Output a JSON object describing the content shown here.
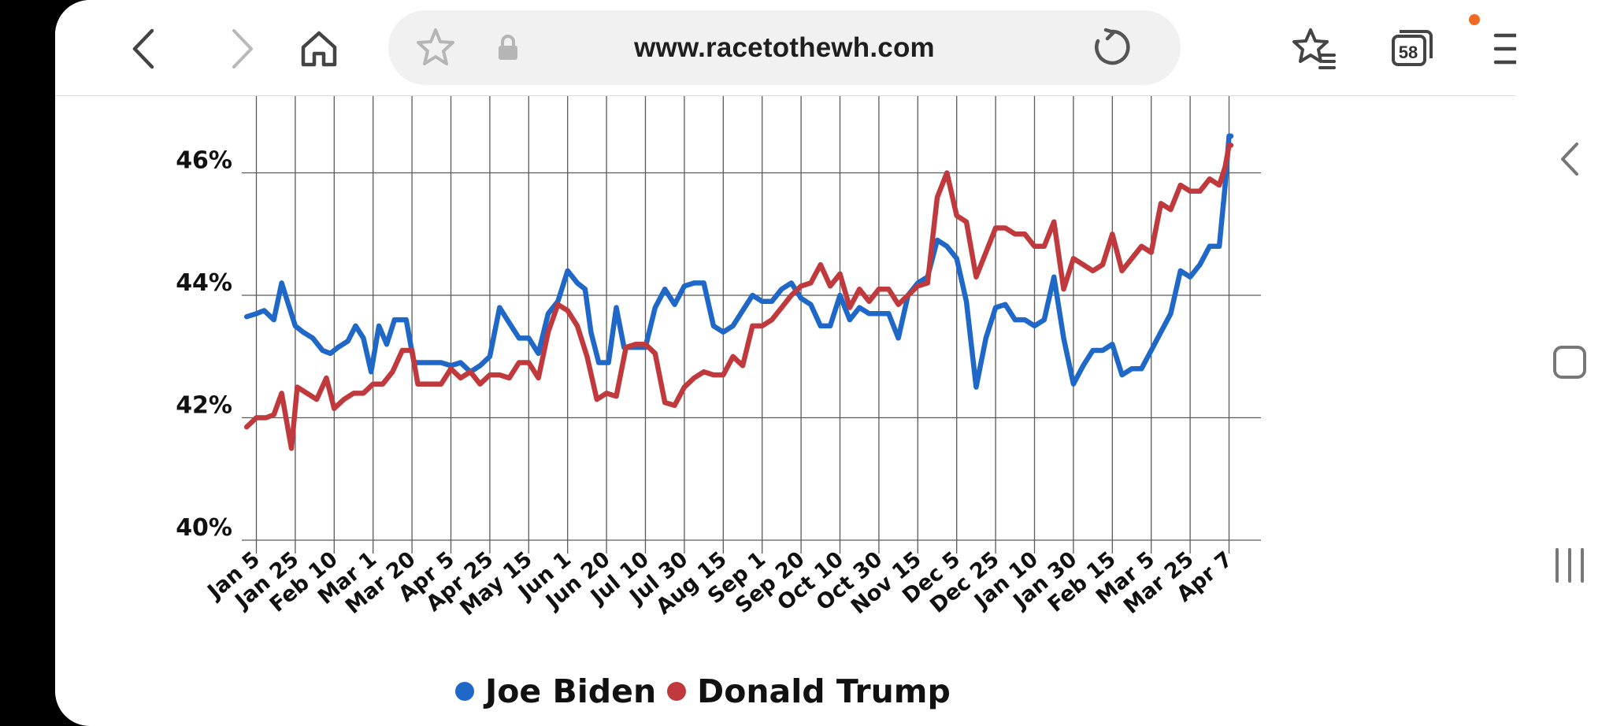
{
  "browser": {
    "url": "www.racetothewh.com",
    "tab_count": "58",
    "accent_dot_color": "#f06a23",
    "icons": [
      "back-icon",
      "forward-icon",
      "home-icon",
      "bookmark-star-icon",
      "lock-icon",
      "reload-icon",
      "bookmarks-list-icon",
      "tabs-icon",
      "menu-icon"
    ]
  },
  "system_nav": {
    "icons": [
      "collapse-left-icon",
      "home-square-icon",
      "recent-apps-icon"
    ]
  },
  "chart_data": {
    "type": "line",
    "title": "",
    "xlabel": "",
    "ylabel": "",
    "ylim": [
      39.7,
      47.4
    ],
    "yticks": [
      40,
      42,
      44,
      46
    ],
    "ytick_labels": [
      "40%",
      "42%",
      "44%",
      "46%"
    ],
    "categories": [
      "Jan 5",
      "Jan 25",
      "Feb 10",
      "Mar 1",
      "Mar 20",
      "Apr 5",
      "Apr 25",
      "May 15",
      "Jun 1",
      "Jun 20",
      "Jul 10",
      "Jul 30",
      "Aug 15",
      "Sep 1",
      "Sep 20",
      "Oct 10",
      "Oct 30",
      "Nov 15",
      "Dec 5",
      "Dec 25",
      "Jan 10",
      "Jan 30",
      "Feb 15",
      "Mar 5",
      "Mar 25",
      "Apr 7"
    ],
    "x_range": [
      -0.25,
      25.05
    ],
    "grid": true,
    "legend_position": "bottom",
    "series": [
      {
        "name": "Joe Biden",
        "color": "#1f68c7",
        "points": [
          [
            -0.25,
            43.65
          ],
          [
            0,
            43.7
          ],
          [
            0.2,
            43.75
          ],
          [
            0.45,
            43.6
          ],
          [
            0.65,
            44.2
          ],
          [
            0.8,
            43.9
          ],
          [
            1,
            43.5
          ],
          [
            1.2,
            43.4
          ],
          [
            1.45,
            43.3
          ],
          [
            1.7,
            43.1
          ],
          [
            1.9,
            43.05
          ],
          [
            2.1,
            43.15
          ],
          [
            2.35,
            43.25
          ],
          [
            2.55,
            43.5
          ],
          [
            2.75,
            43.3
          ],
          [
            2.95,
            42.75
          ],
          [
            3.15,
            43.5
          ],
          [
            3.35,
            43.2
          ],
          [
            3.55,
            43.6
          ],
          [
            3.75,
            43.6
          ],
          [
            3.85,
            43.6
          ],
          [
            4.05,
            42.9
          ],
          [
            4.4,
            42.9
          ],
          [
            4.75,
            42.9
          ],
          [
            5,
            42.85
          ],
          [
            5.25,
            42.9
          ],
          [
            5.5,
            42.75
          ],
          [
            5.75,
            42.85
          ],
          [
            6,
            43.0
          ],
          [
            6.25,
            43.8
          ],
          [
            6.5,
            43.55
          ],
          [
            6.75,
            43.3
          ],
          [
            7,
            43.3
          ],
          [
            7.25,
            43.05
          ],
          [
            7.5,
            43.7
          ],
          [
            7.75,
            43.9
          ],
          [
            8,
            44.4
          ],
          [
            8.25,
            44.2
          ],
          [
            8.45,
            44.1
          ],
          [
            8.6,
            43.4
          ],
          [
            8.8,
            42.9
          ],
          [
            9.05,
            42.9
          ],
          [
            9.25,
            43.8
          ],
          [
            9.45,
            43.15
          ],
          [
            9.75,
            43.15
          ],
          [
            10,
            43.15
          ],
          [
            10.25,
            43.8
          ],
          [
            10.5,
            44.1
          ],
          [
            10.75,
            43.85
          ],
          [
            11,
            44.15
          ],
          [
            11.25,
            44.2
          ],
          [
            11.5,
            44.2
          ],
          [
            11.75,
            43.5
          ],
          [
            12,
            43.4
          ],
          [
            12.25,
            43.5
          ],
          [
            12.5,
            43.75
          ],
          [
            12.75,
            44.0
          ],
          [
            13,
            43.9
          ],
          [
            13.25,
            43.9
          ],
          [
            13.5,
            44.1
          ],
          [
            13.75,
            44.2
          ],
          [
            14,
            43.95
          ],
          [
            14.25,
            43.85
          ],
          [
            14.5,
            43.5
          ],
          [
            14.75,
            43.5
          ],
          [
            15,
            44.0
          ],
          [
            15.25,
            43.6
          ],
          [
            15.5,
            43.8
          ],
          [
            15.75,
            43.7
          ],
          [
            16,
            43.7
          ],
          [
            16.25,
            43.7
          ],
          [
            16.5,
            43.3
          ],
          [
            16.75,
            44.0
          ],
          [
            17,
            44.2
          ],
          [
            17.25,
            44.3
          ],
          [
            17.5,
            44.9
          ],
          [
            17.75,
            44.8
          ],
          [
            18,
            44.6
          ],
          [
            18.25,
            43.9
          ],
          [
            18.5,
            42.5
          ],
          [
            18.75,
            43.3
          ],
          [
            19,
            43.8
          ],
          [
            19.25,
            43.85
          ],
          [
            19.5,
            43.6
          ],
          [
            19.75,
            43.6
          ],
          [
            20,
            43.5
          ],
          [
            20.25,
            43.6
          ],
          [
            20.5,
            44.3
          ],
          [
            20.75,
            43.3
          ],
          [
            21,
            42.55
          ],
          [
            21.25,
            42.85
          ],
          [
            21.5,
            43.1
          ],
          [
            21.75,
            43.1
          ],
          [
            22,
            43.2
          ],
          [
            22.25,
            42.7
          ],
          [
            22.5,
            42.8
          ],
          [
            22.75,
            42.8
          ],
          [
            23,
            43.1
          ],
          [
            23.25,
            43.4
          ],
          [
            23.5,
            43.7
          ],
          [
            23.75,
            44.4
          ],
          [
            24,
            44.3
          ],
          [
            24.25,
            44.5
          ],
          [
            24.5,
            44.8
          ],
          [
            24.75,
            44.8
          ],
          [
            24.9,
            45.8
          ],
          [
            25,
            46.6
          ],
          [
            25.05,
            46.6
          ]
        ]
      },
      {
        "name": "Donald Trump",
        "color": "#c03a3d",
        "points": [
          [
            -0.25,
            41.85
          ],
          [
            0,
            42.0
          ],
          [
            0.25,
            42.0
          ],
          [
            0.45,
            42.05
          ],
          [
            0.65,
            42.4
          ],
          [
            0.9,
            41.5
          ],
          [
            1.05,
            42.5
          ],
          [
            1.3,
            42.4
          ],
          [
            1.55,
            42.3
          ],
          [
            1.8,
            42.65
          ],
          [
            2,
            42.15
          ],
          [
            2.25,
            42.3
          ],
          [
            2.5,
            42.4
          ],
          [
            2.75,
            42.4
          ],
          [
            3,
            42.55
          ],
          [
            3.25,
            42.55
          ],
          [
            3.5,
            42.75
          ],
          [
            3.75,
            43.1
          ],
          [
            4,
            43.1
          ],
          [
            4.15,
            42.55
          ],
          [
            4.5,
            42.55
          ],
          [
            4.75,
            42.55
          ],
          [
            5,
            42.8
          ],
          [
            5.25,
            42.65
          ],
          [
            5.5,
            42.75
          ],
          [
            5.75,
            42.55
          ],
          [
            6,
            42.7
          ],
          [
            6.25,
            42.7
          ],
          [
            6.5,
            42.65
          ],
          [
            6.75,
            42.9
          ],
          [
            7,
            42.9
          ],
          [
            7.25,
            42.65
          ],
          [
            7.5,
            43.4
          ],
          [
            7.75,
            43.85
          ],
          [
            8,
            43.75
          ],
          [
            8.25,
            43.5
          ],
          [
            8.5,
            43.0
          ],
          [
            8.75,
            42.3
          ],
          [
            9,
            42.4
          ],
          [
            9.25,
            42.35
          ],
          [
            9.5,
            43.15
          ],
          [
            9.75,
            43.2
          ],
          [
            10,
            43.2
          ],
          [
            10.25,
            43.05
          ],
          [
            10.5,
            42.25
          ],
          [
            10.75,
            42.2
          ],
          [
            11,
            42.5
          ],
          [
            11.25,
            42.65
          ],
          [
            11.5,
            42.75
          ],
          [
            11.75,
            42.7
          ],
          [
            12,
            42.7
          ],
          [
            12.25,
            43.0
          ],
          [
            12.5,
            42.85
          ],
          [
            12.75,
            43.5
          ],
          [
            13,
            43.5
          ],
          [
            13.25,
            43.6
          ],
          [
            13.5,
            43.8
          ],
          [
            13.75,
            44.0
          ],
          [
            14,
            44.15
          ],
          [
            14.25,
            44.2
          ],
          [
            14.5,
            44.5
          ],
          [
            14.75,
            44.15
          ],
          [
            15,
            44.35
          ],
          [
            15.25,
            43.8
          ],
          [
            15.5,
            44.1
          ],
          [
            15.75,
            43.9
          ],
          [
            16,
            44.1
          ],
          [
            16.25,
            44.1
          ],
          [
            16.5,
            43.85
          ],
          [
            16.75,
            44.0
          ],
          [
            17,
            44.15
          ],
          [
            17.25,
            44.2
          ],
          [
            17.5,
            45.6
          ],
          [
            17.75,
            46.0
          ],
          [
            18,
            45.3
          ],
          [
            18.25,
            45.2
          ],
          [
            18.5,
            44.3
          ],
          [
            18.75,
            44.7
          ],
          [
            19,
            45.1
          ],
          [
            19.25,
            45.1
          ],
          [
            19.5,
            45.0
          ],
          [
            19.75,
            45.0
          ],
          [
            20,
            44.8
          ],
          [
            20.25,
            44.8
          ],
          [
            20.5,
            45.2
          ],
          [
            20.75,
            44.1
          ],
          [
            21,
            44.6
          ],
          [
            21.25,
            44.5
          ],
          [
            21.5,
            44.4
          ],
          [
            21.75,
            44.5
          ],
          [
            22,
            45.0
          ],
          [
            22.25,
            44.4
          ],
          [
            22.5,
            44.6
          ],
          [
            22.75,
            44.8
          ],
          [
            23,
            44.7
          ],
          [
            23.25,
            45.5
          ],
          [
            23.5,
            45.4
          ],
          [
            23.75,
            45.8
          ],
          [
            24,
            45.7
          ],
          [
            24.25,
            45.7
          ],
          [
            24.5,
            45.9
          ],
          [
            24.75,
            45.8
          ],
          [
            24.9,
            46.1
          ],
          [
            25,
            46.45
          ],
          [
            25.05,
            46.45
          ]
        ]
      }
    ]
  }
}
